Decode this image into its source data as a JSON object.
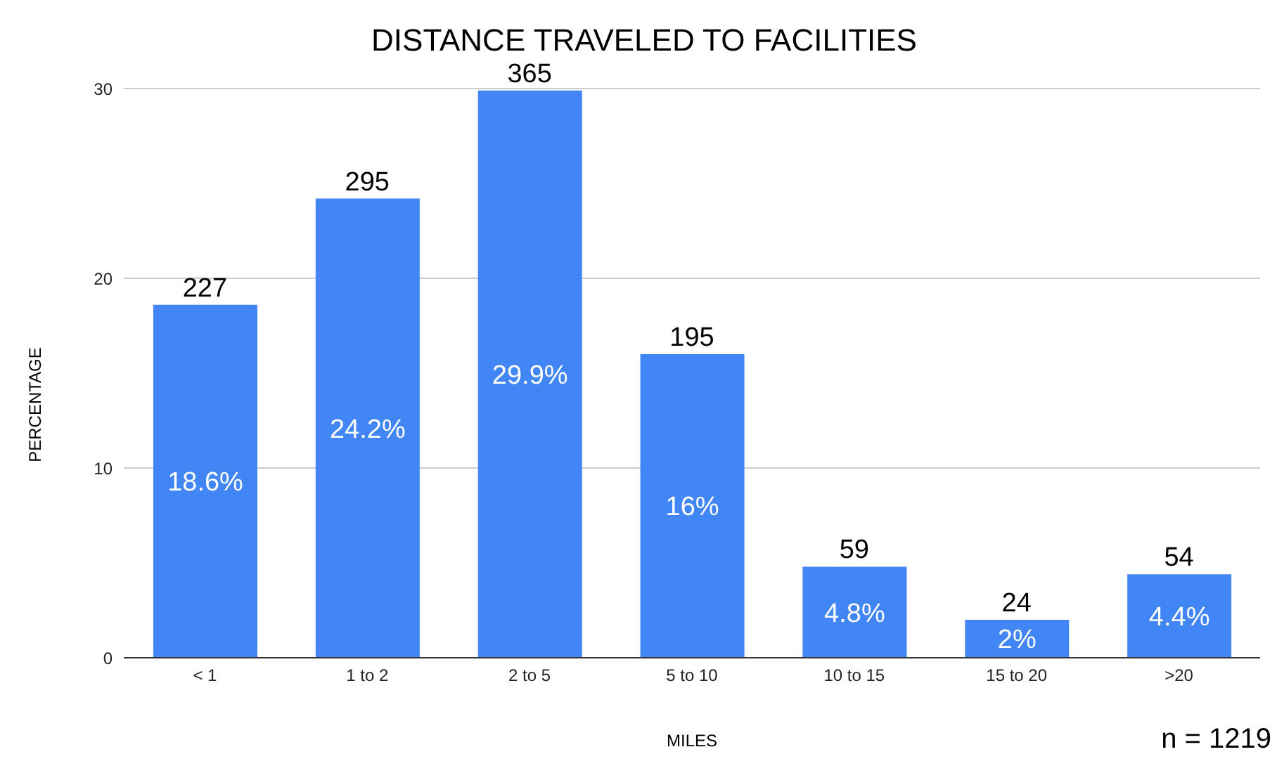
{
  "chart_data": {
    "type": "bar",
    "title": "DISTANCE TRAVELED TO FACILITIES",
    "xlabel": "MILES",
    "ylabel": "PERCENTAGE",
    "categories": [
      "< 1",
      "1 to 2",
      "2 to 5",
      "5 to 10",
      "10 to 15",
      "15 to 20",
      ">20"
    ],
    "values": [
      18.6,
      24.2,
      29.9,
      16,
      4.8,
      2,
      4.4
    ],
    "value_labels": [
      "18.6%",
      "24.2%",
      "29.9%",
      "16%",
      "4.8%",
      "2%",
      "4.4%"
    ],
    "color": "#4285f4",
    "ylim": [
      0,
      30
    ],
    "yticks": [
      0,
      10,
      20,
      30
    ],
    "grid": "y",
    "legend": false,
    "annotations": [
      {
        "text": "227",
        "x": "< 1",
        "y": 18.6
      },
      {
        "text": "295",
        "x": "1 to 2",
        "y": 24.2
      },
      {
        "text": "365",
        "x": "2 to 5",
        "y": 29.9
      },
      {
        "text": "195",
        "x": "5 to 10",
        "y": 16
      },
      {
        "text": "59",
        "x": "10 to 15",
        "y": 4.8
      },
      {
        "text": "24",
        "x": "15 to 20",
        "y": 2
      },
      {
        "text": "54",
        "x": ">20",
        "y": 4.4
      },
      "n = 1219"
    ]
  }
}
